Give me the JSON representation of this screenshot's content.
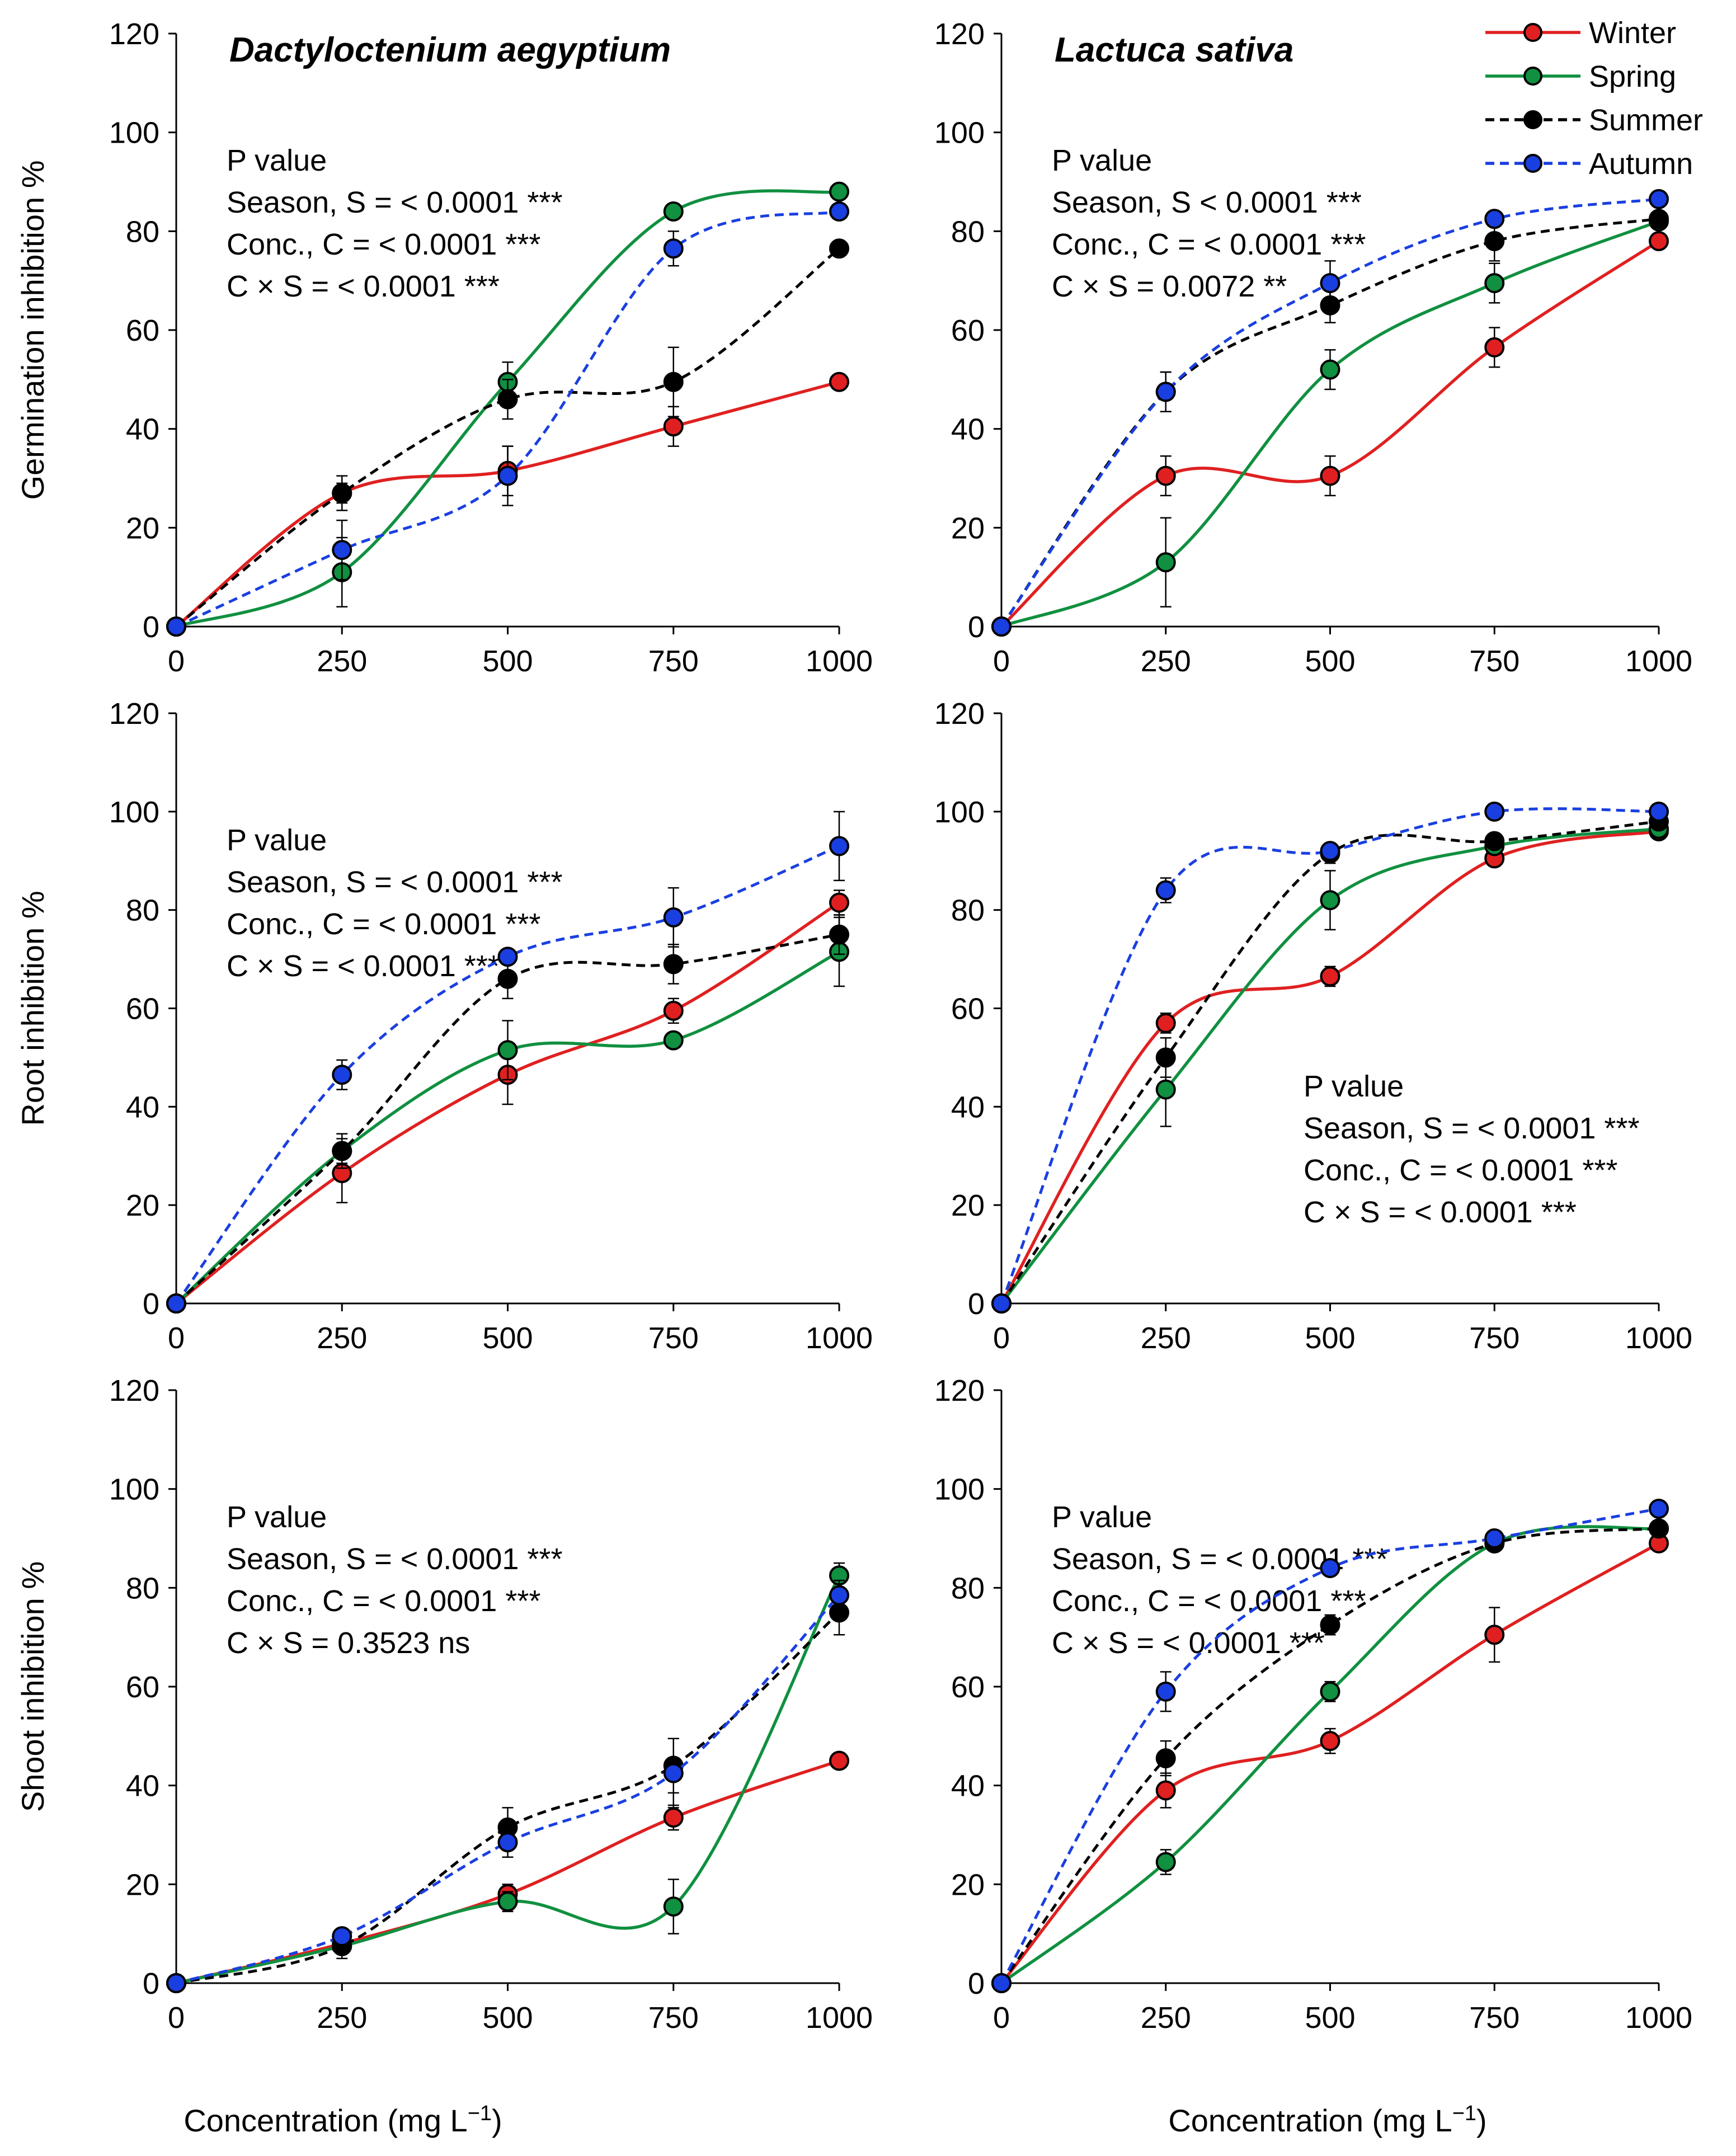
{
  "figure": {
    "x_axis_label": "Concentration (mg L",
    "x_axis_label_sup": "−1",
    "x_axis_label_end": ")",
    "legend": [
      {
        "name": "Winter",
        "color": "#e02020",
        "dash": false
      },
      {
        "name": "Spring",
        "color": "#109040",
        "dash": false
      },
      {
        "name": "Summer",
        "color": "#000000",
        "dash": true
      },
      {
        "name": "Autumn",
        "color": "#1a3fe0",
        "dash": true
      }
    ]
  },
  "chart_data": [
    {
      "type": "line",
      "title": "Dactyloctenium aegyptium",
      "ylabel": "Germination inhibition %",
      "categories": [
        "0",
        "250",
        "500",
        "750",
        "1000"
      ],
      "x": [
        0,
        250,
        500,
        750,
        1000
      ],
      "ylim": [
        0,
        120
      ],
      "yticks": [
        0,
        20,
        40,
        60,
        80,
        100,
        120
      ],
      "stats": [
        "P value",
        "Season, S = < 0.0001 ***",
        "Conc., C = < 0.0001 ***",
        "C × S = < 0.0001 ***"
      ],
      "stats_pos": "upper-left",
      "series": [
        {
          "name": "Winter",
          "values": [
            0,
            27,
            31.5,
            40.5,
            49.5
          ],
          "err": [
            0,
            2,
            5,
            4,
            0
          ]
        },
        {
          "name": "Spring",
          "values": [
            0,
            11,
            49.5,
            84,
            88
          ],
          "err": [
            0,
            7,
            4,
            0,
            0
          ]
        },
        {
          "name": "Summer",
          "values": [
            0,
            27,
            46,
            49.5,
            76.5
          ],
          "err": [
            0,
            3.5,
            4,
            7,
            0
          ]
        },
        {
          "name": "Autumn",
          "values": [
            0,
            15.5,
            30.5,
            76.5,
            84
          ],
          "err": [
            0,
            6,
            6,
            3.5,
            0
          ]
        }
      ]
    },
    {
      "type": "line",
      "title": "Lactuca sativa",
      "ylabel": "",
      "categories": [
        "0",
        "250",
        "500",
        "750",
        "1000"
      ],
      "x": [
        0,
        250,
        500,
        750,
        1000
      ],
      "ylim": [
        0,
        120
      ],
      "yticks": [
        0,
        20,
        40,
        60,
        80,
        100,
        120
      ],
      "stats": [
        "P value",
        "Season, S < 0.0001 ***",
        "Conc., C = < 0.0001 ***",
        "C × S = 0.0072 **"
      ],
      "stats_pos": "upper-left",
      "series": [
        {
          "name": "Winter",
          "values": [
            0,
            30.5,
            30.5,
            56.5,
            78
          ],
          "err": [
            0,
            4,
            4,
            4,
            0
          ]
        },
        {
          "name": "Spring",
          "values": [
            0,
            13,
            52,
            69.5,
            82
          ],
          "err": [
            0,
            9,
            4,
            4,
            0
          ]
        },
        {
          "name": "Summer",
          "values": [
            0,
            47.5,
            65,
            78,
            82.5
          ],
          "err": [
            0,
            4,
            3.5,
            4,
            0
          ]
        },
        {
          "name": "Autumn",
          "values": [
            0,
            47.5,
            69.5,
            82.5,
            86.5
          ],
          "err": [
            0,
            4,
            4.5,
            0,
            0
          ]
        }
      ]
    },
    {
      "type": "line",
      "title": "",
      "ylabel": "Root inhibition %",
      "categories": [
        "0",
        "250",
        "500",
        "750",
        "1000"
      ],
      "x": [
        0,
        250,
        500,
        750,
        1000
      ],
      "ylim": [
        0,
        120
      ],
      "yticks": [
        0,
        20,
        40,
        60,
        80,
        100,
        120
      ],
      "stats": [
        "P value",
        "Season, S = < 0.0001 ***",
        "Conc., C = < 0.0001 ***",
        "C × S = < 0.0001 ***"
      ],
      "stats_pos": "upper-left",
      "series": [
        {
          "name": "Winter",
          "values": [
            0,
            26.5,
            46.5,
            59.5,
            81.5
          ],
          "err": [
            0,
            6,
            6,
            2.5,
            2.5
          ]
        },
        {
          "name": "Spring",
          "values": [
            0,
            31,
            51.5,
            53.5,
            71.5
          ],
          "err": [
            0,
            2.5,
            6,
            1.5,
            7
          ]
        },
        {
          "name": "Summer",
          "values": [
            0,
            31,
            66,
            69,
            75
          ],
          "err": [
            0,
            3.5,
            4,
            4,
            4
          ]
        },
        {
          "name": "Autumn",
          "values": [
            0,
            46.5,
            70.5,
            78.5,
            93
          ],
          "err": [
            0,
            3,
            1.5,
            6,
            7
          ]
        }
      ]
    },
    {
      "type": "line",
      "title": "",
      "ylabel": "",
      "categories": [
        "0",
        "250",
        "500",
        "750",
        "1000"
      ],
      "x": [
        0,
        250,
        500,
        750,
        1000
      ],
      "ylim": [
        0,
        120
      ],
      "yticks": [
        0,
        20,
        40,
        60,
        80,
        100,
        120
      ],
      "stats": [
        "P value",
        "Season, S = < 0.0001 ***",
        "Conc., C = < 0.0001 ***",
        "C × S = < 0.0001 ***"
      ],
      "stats_pos": "lower-right",
      "series": [
        {
          "name": "Winter",
          "values": [
            0,
            57,
            66.5,
            90.5,
            96
          ],
          "err": [
            0,
            2,
            2,
            1,
            1
          ]
        },
        {
          "name": "Spring",
          "values": [
            0,
            43.5,
            82,
            93,
            96.5
          ],
          "err": [
            0,
            7.5,
            6,
            1,
            1
          ]
        },
        {
          "name": "Summer",
          "values": [
            0,
            50,
            91.5,
            94,
            98
          ],
          "err": [
            0,
            4,
            2,
            1,
            1
          ]
        },
        {
          "name": "Autumn",
          "values": [
            0,
            84,
            92,
            100,
            100
          ],
          "err": [
            0,
            2.5,
            1.5,
            0,
            0
          ]
        }
      ]
    },
    {
      "type": "line",
      "title": "",
      "ylabel": "Shoot inhibition %",
      "categories": [
        "0",
        "250",
        "500",
        "750",
        "1000"
      ],
      "x": [
        0,
        250,
        500,
        750,
        1000
      ],
      "ylim": [
        0,
        120
      ],
      "yticks": [
        0,
        20,
        40,
        60,
        80,
        100,
        120
      ],
      "stats": [
        "P value",
        "Season, S = < 0.0001 ***",
        "Conc., C = < 0.0001 ***",
        "C × S = 0.3523 ns"
      ],
      "stats_pos": "upper-left",
      "series": [
        {
          "name": "Winter",
          "values": [
            0,
            8,
            18,
            33.5,
            45
          ],
          "err": [
            0,
            1.5,
            2,
            2.5,
            1
          ]
        },
        {
          "name": "Spring",
          "values": [
            0,
            7.5,
            16.5,
            15.5,
            82.5
          ],
          "err": [
            0,
            1.5,
            2,
            5.5,
            2.5
          ]
        },
        {
          "name": "Summer",
          "values": [
            0,
            7.5,
            31.5,
            44,
            75
          ],
          "err": [
            0,
            2.5,
            4,
            5.5,
            4.5
          ]
        },
        {
          "name": "Autumn",
          "values": [
            0,
            9.5,
            28.5,
            42.5,
            78.5
          ],
          "err": [
            0,
            1.5,
            3,
            7,
            3
          ]
        }
      ]
    },
    {
      "type": "line",
      "title": "",
      "ylabel": "",
      "categories": [
        "0",
        "250",
        "500",
        "750",
        "1000"
      ],
      "x": [
        0,
        250,
        500,
        750,
        1000
      ],
      "ylim": [
        0,
        120
      ],
      "yticks": [
        0,
        20,
        40,
        60,
        80,
        100,
        120
      ],
      "stats": [
        "P value",
        "Season, S = < 0.0001 ***",
        "Conc., C = < 0.0001 ***",
        "C × S = < 0.0001 ***"
      ],
      "stats_pos": "upper-left",
      "series": [
        {
          "name": "Winter",
          "values": [
            0,
            39,
            49,
            70.5,
            89
          ],
          "err": [
            0,
            3.5,
            2.5,
            5.5,
            1
          ]
        },
        {
          "name": "Spring",
          "values": [
            0,
            24.5,
            59,
            89,
            92
          ],
          "err": [
            0,
            2.5,
            2,
            1,
            1
          ]
        },
        {
          "name": "Summer",
          "values": [
            0,
            45.5,
            72.5,
            89,
            92
          ],
          "err": [
            0,
            3.5,
            2,
            1,
            1
          ]
        },
        {
          "name": "Autumn",
          "values": [
            0,
            59,
            84,
            90,
            96
          ],
          "err": [
            0,
            4,
            1,
            1,
            1
          ]
        }
      ]
    }
  ]
}
